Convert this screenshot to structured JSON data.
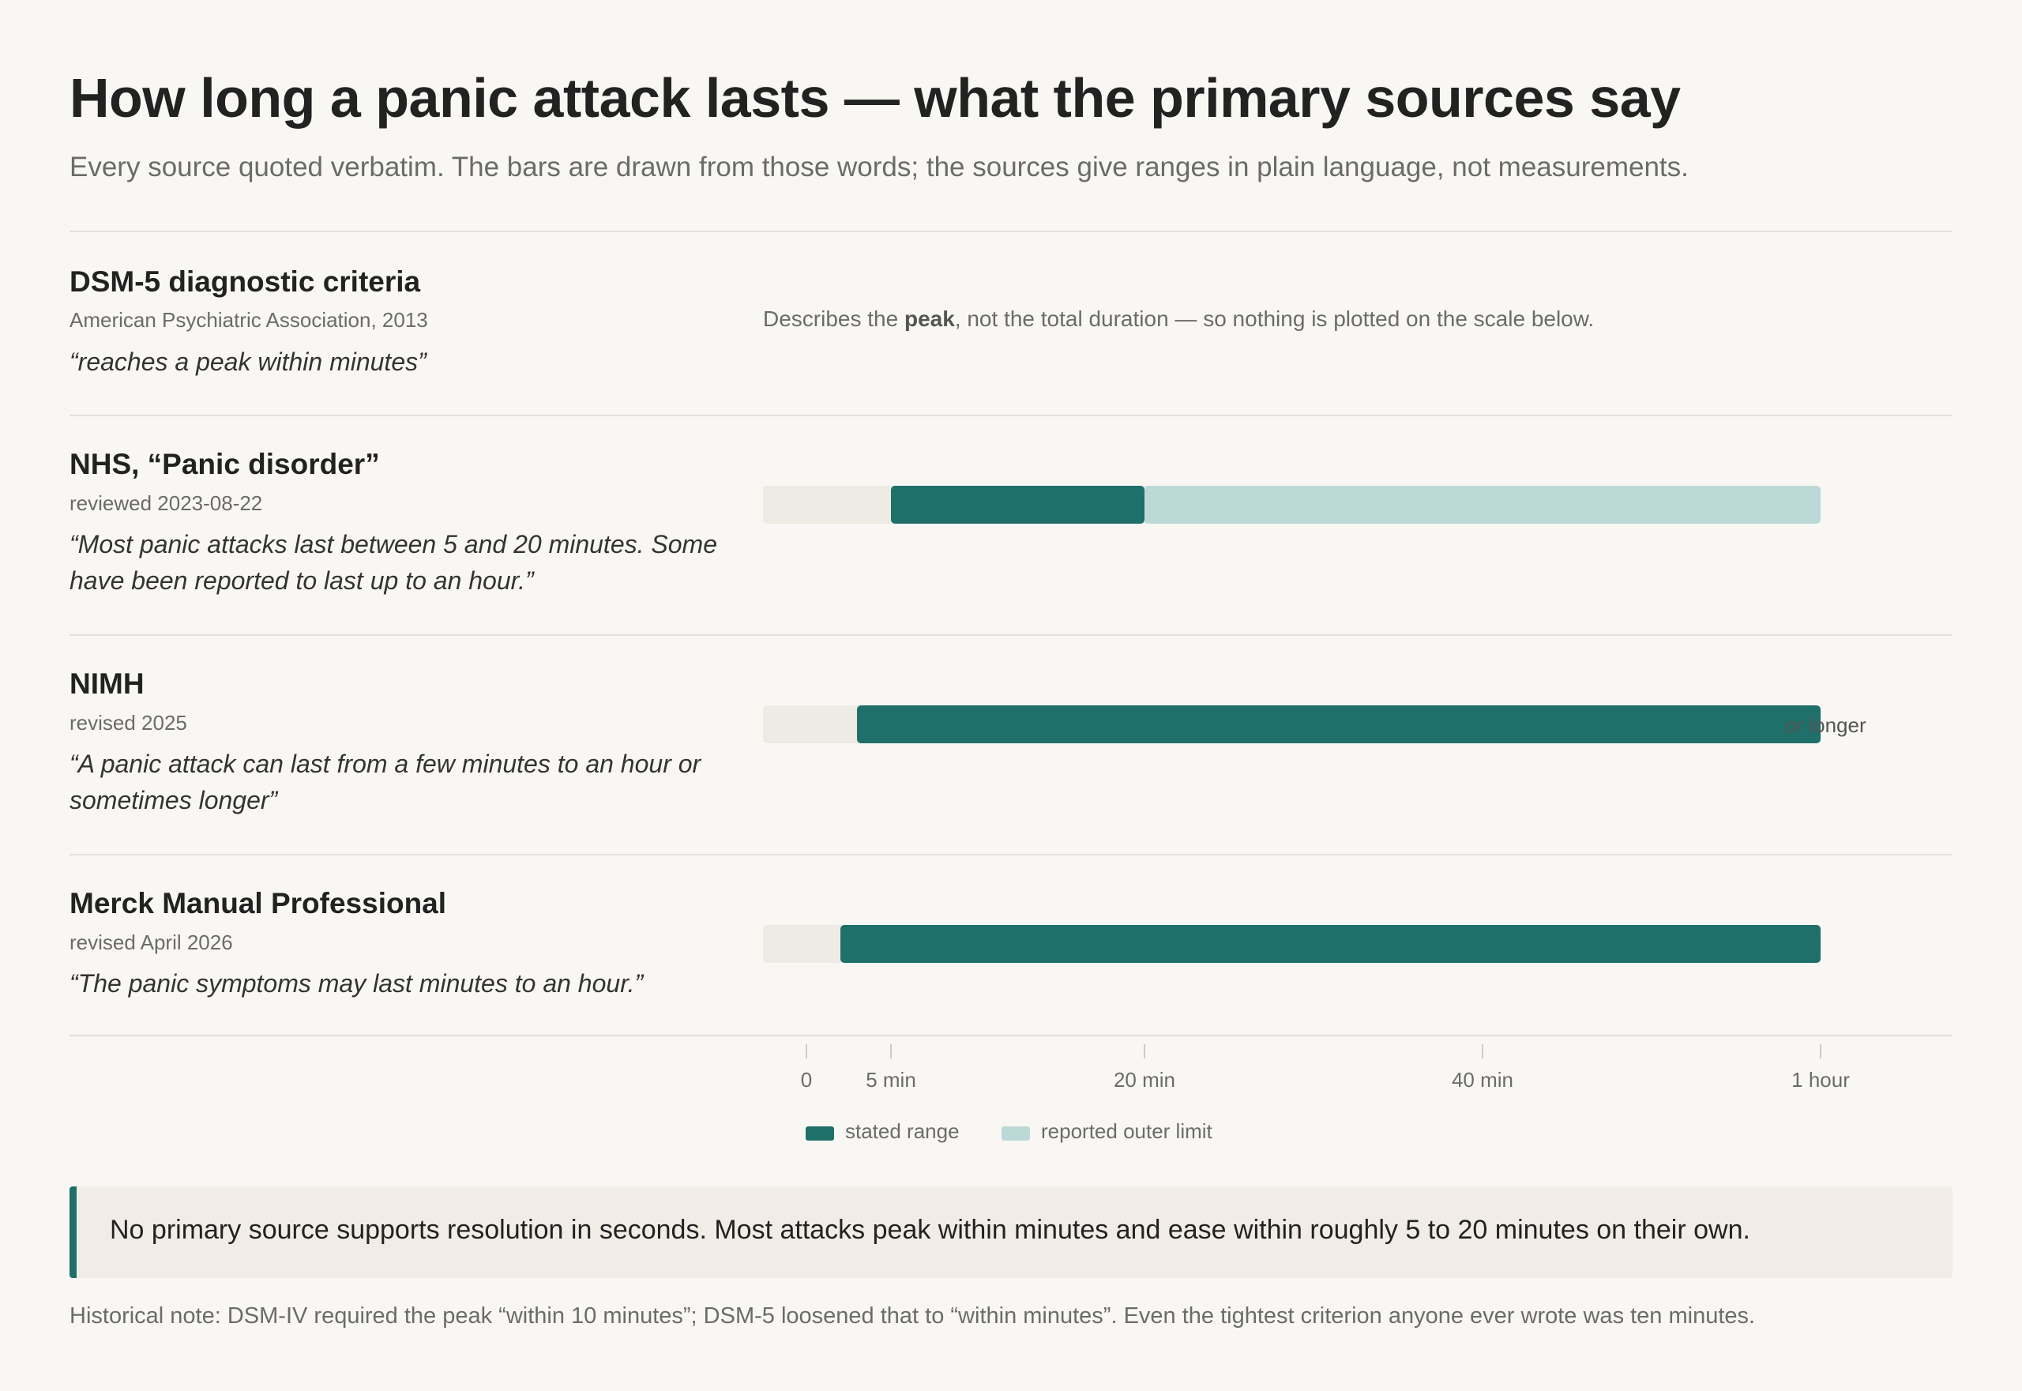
{
  "title": "How long a panic attack lasts — what the primary sources say",
  "subtitle": "Every source quoted verbatim. The bars are drawn from those words; the sources give ranges in plain language, not measurements.",
  "colors": {
    "stated_range": "#1f6f6a",
    "reported_outer_limit": "#bcd9d8",
    "track": "#eeebe5",
    "background": "#f9f7f3",
    "callout_background": "#f1ece5"
  },
  "sources": [
    {
      "name": "DSM-5 diagnostic criteria",
      "meta": "American Psychiatric Association, 2013",
      "quote": "“reaches a peak within minutes”",
      "note_prefix": "Describes the ",
      "note_emphasis": "peak",
      "note_suffix": ", not the total duration — so nothing is plotted on the scale below."
    },
    {
      "name": "NHS, “Panic disorder”",
      "meta": "reviewed 2023-08-22",
      "quote": "“Most panic attacks last between 5 and 20 minutes. Some have been reported to last up to an hour.”"
    },
    {
      "name": "NIMH",
      "meta": "revised 2025",
      "quote": "“A panic attack can last from a few minutes to an hour or sometimes longer”",
      "trail": "or longer"
    },
    {
      "name": "Merck Manual Professional",
      "meta": "revised April 2026",
      "quote": "“The panic symptoms may last minutes to an hour.”"
    }
  ],
  "chart_data": {
    "type": "bar",
    "orientation": "horizontal",
    "x_unit": "minutes",
    "xlim": [
      0,
      60
    ],
    "ticks": [
      {
        "value": 0,
        "label": "0"
      },
      {
        "value": 5,
        "label": "5 min"
      },
      {
        "value": 20,
        "label": "20 min"
      },
      {
        "value": 40,
        "label": "40 min"
      },
      {
        "value": 60,
        "label": "1 hour"
      }
    ],
    "categories": [
      "DSM-5 diagnostic criteria",
      "NHS, “Panic disorder”",
      "NIMH",
      "Merck Manual Professional"
    ],
    "series": [
      {
        "name": "stated range",
        "ranges": [
          null,
          [
            5,
            20
          ],
          [
            3,
            60
          ],
          [
            2,
            60
          ]
        ]
      },
      {
        "name": "reported outer limit",
        "ranges": [
          null,
          [
            20,
            60
          ],
          null,
          null
        ]
      }
    ],
    "legend": [
      "stated range",
      "reported outer limit"
    ],
    "legend_position": "bottom"
  },
  "callout": "No primary source supports resolution in seconds. Most attacks peak within minutes and ease within roughly 5 to 20 minutes on their own.",
  "footnote": "Historical note: DSM-IV required the peak “within 10 minutes”; DSM-5 loosened that to “within minutes”. Even the tightest criterion anyone ever wrote was ten minutes."
}
